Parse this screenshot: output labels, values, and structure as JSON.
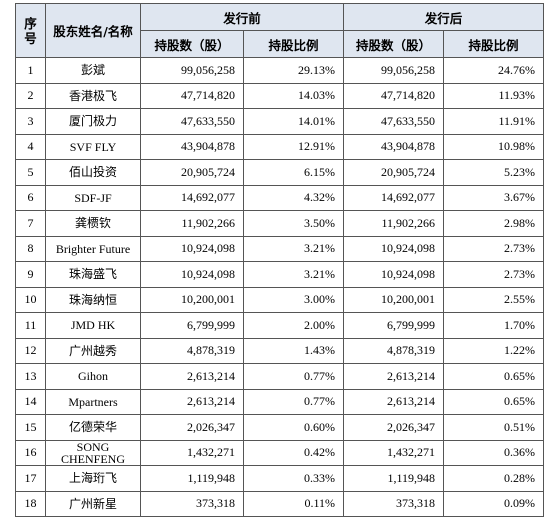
{
  "table": {
    "header": {
      "index": "序\n号",
      "name": "股东姓名/名称",
      "before": "发行前",
      "after": "发行后",
      "before_shares": "持股数（股）",
      "before_ratio": "持股比例",
      "after_shares": "持股数（股）",
      "after_ratio": "持股比例"
    },
    "rows": [
      [
        "1",
        "彭斌",
        "99,056,258",
        "29.13%",
        "99,056,258",
        "24.76%"
      ],
      [
        "2",
        "香港极飞",
        "47,714,820",
        "14.03%",
        "47,714,820",
        "11.93%"
      ],
      [
        "3",
        "厦门极力",
        "47,633,550",
        "14.01%",
        "47,633,550",
        "11.91%"
      ],
      [
        "4",
        "SVF FLY",
        "43,904,878",
        "12.91%",
        "43,904,878",
        "10.98%"
      ],
      [
        "5",
        "佰山投资",
        "20,905,724",
        "6.15%",
        "20,905,724",
        "5.23%"
      ],
      [
        "6",
        "SDF-JF",
        "14,692,077",
        "4.32%",
        "14,692,077",
        "3.67%"
      ],
      [
        "7",
        "龚槚钦",
        "11,902,266",
        "3.50%",
        "11,902,266",
        "2.98%"
      ],
      [
        "8",
        "Brighter Future",
        "10,924,098",
        "3.21%",
        "10,924,098",
        "2.73%"
      ],
      [
        "9",
        "珠海盛飞",
        "10,924,098",
        "3.21%",
        "10,924,098",
        "2.73%"
      ],
      [
        "10",
        "珠海纳恒",
        "10,200,001",
        "3.00%",
        "10,200,001",
        "2.55%"
      ],
      [
        "11",
        "JMD HK",
        "6,799,999",
        "2.00%",
        "6,799,999",
        "1.70%"
      ],
      [
        "12",
        "广州越秀",
        "4,878,319",
        "1.43%",
        "4,878,319",
        "1.22%"
      ],
      [
        "13",
        "Gihon",
        "2,613,214",
        "0.77%",
        "2,613,214",
        "0.65%"
      ],
      [
        "14",
        "Mpartners",
        "2,613,214",
        "0.77%",
        "2,613,214",
        "0.65%"
      ],
      [
        "15",
        "亿德荣华",
        "2,026,347",
        "0.60%",
        "2,026,347",
        "0.51%"
      ],
      [
        "16",
        "SONG\nCHENFENG",
        "1,432,271",
        "0.42%",
        "1,432,271",
        "0.36%"
      ],
      [
        "17",
        "上海珩飞",
        "1,119,948",
        "0.33%",
        "1,119,948",
        "0.28%"
      ],
      [
        "18",
        "广州新星",
        "373,318",
        "0.11%",
        "373,318",
        "0.09%"
      ]
    ]
  }
}
